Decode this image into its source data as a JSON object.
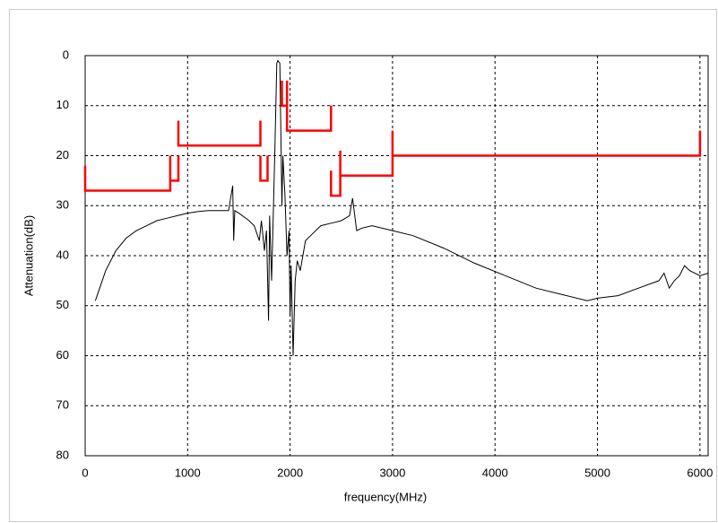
{
  "chart_data": {
    "type": "line",
    "x_label": "frequency(MHz)",
    "y_label": "Attenuation(dB)",
    "xlim": [
      0,
      6080
    ],
    "ylim": [
      80,
      0
    ],
    "xticks": [
      0,
      1000,
      2000,
      3000,
      4000,
      5000,
      6000
    ],
    "yticks": [
      0,
      10,
      20,
      30,
      40,
      50,
      60,
      70,
      80
    ],
    "grid": true,
    "series": [
      {
        "color": "#000000",
        "x": [
          100,
          200,
          300,
          400,
          500,
          600,
          700,
          800,
          900,
          1000,
          1100,
          1200,
          1300,
          1400,
          1440,
          1450,
          1460,
          1500,
          1600,
          1650,
          1700,
          1720,
          1750,
          1770,
          1790,
          1800,
          1820,
          1850,
          1870,
          1880,
          1900,
          1910,
          1920,
          1930,
          1950,
          1970,
          1990,
          2000,
          2010,
          2030,
          2050,
          2070,
          2100,
          2150,
          2200,
          2300,
          2400,
          2500,
          2580,
          2610,
          2650,
          2700,
          2800,
          3000,
          3200,
          3500,
          3800,
          4100,
          4400,
          4700,
          4900,
          5000,
          5200,
          5400,
          5600,
          5650,
          5700,
          5750,
          5800,
          5850,
          5900,
          6000,
          6080
        ],
        "values": [
          49,
          43,
          39,
          36.5,
          35,
          34,
          33,
          32.5,
          32,
          31.5,
          31.2,
          31,
          31,
          31,
          26,
          37,
          31,
          31.5,
          33,
          34,
          37,
          33,
          39,
          35,
          53,
          32,
          45,
          20,
          1.5,
          1,
          1.5,
          15,
          30,
          20,
          28,
          40,
          35,
          52,
          42,
          60,
          45,
          41,
          43,
          37,
          36,
          34,
          33.5,
          33,
          32,
          28.5,
          35,
          34.5,
          34,
          35,
          36,
          38.5,
          41.5,
          44,
          46.5,
          48,
          49,
          48.5,
          48,
          46.5,
          45,
          43.5,
          46.5,
          45,
          44,
          42,
          43,
          44,
          43.5
        ]
      },
      {
        "color": "#ff0000",
        "x": [
          0,
          0,
          830,
          830,
          null,
          830,
          910,
          910,
          null,
          910,
          910,
          1710,
          1710,
          null,
          1710,
          1710,
          1780,
          1780,
          null,
          1920,
          1920,
          1970,
          null,
          1970,
          1970,
          2400,
          2400,
          null,
          2400,
          2400,
          2490,
          2490,
          null,
          2490,
          3000,
          3000,
          null,
          3000,
          6000,
          6000
        ],
        "values": [
          22,
          27,
          27,
          20,
          null,
          25,
          25,
          20,
          null,
          13,
          18,
          18,
          13,
          null,
          20,
          25,
          25,
          20,
          null,
          5,
          10,
          10,
          null,
          5,
          15,
          15,
          10,
          null,
          23,
          28,
          28,
          19,
          null,
          24,
          24,
          15,
          null,
          20,
          20,
          15
        ]
      }
    ]
  }
}
